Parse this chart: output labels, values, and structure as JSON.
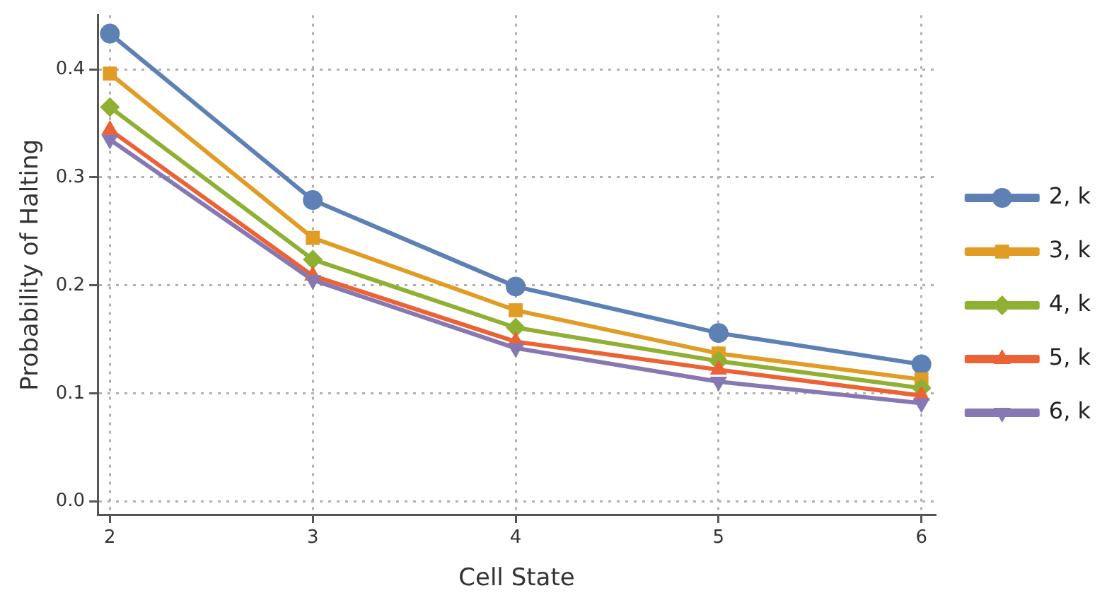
{
  "chart_data": {
    "type": "line",
    "xlabel": "Cell State",
    "ylabel": "Probability of Halting",
    "x": [
      2,
      3,
      4,
      5,
      6
    ],
    "series": [
      {
        "name": "2, k",
        "color": "#5e81b5",
        "marker": "circle",
        "values": [
          0.433,
          0.279,
          0.199,
          0.156,
          0.127
        ]
      },
      {
        "name": "3, k",
        "color": "#e19c24",
        "marker": "square",
        "values": [
          0.396,
          0.244,
          0.177,
          0.137,
          0.113
        ]
      },
      {
        "name": "4, k",
        "color": "#8fb032",
        "marker": "diamond",
        "values": [
          0.365,
          0.224,
          0.161,
          0.13,
          0.105
        ]
      },
      {
        "name": "5, k",
        "color": "#eb6235",
        "marker": "triangle",
        "values": [
          0.344,
          0.209,
          0.148,
          0.122,
          0.098
        ]
      },
      {
        "name": "6, k",
        "color": "#8778b3",
        "marker": "triangle-down",
        "values": [
          0.335,
          0.205,
          0.142,
          0.111,
          0.091
        ]
      }
    ],
    "xlim": [
      1.94,
      6.07
    ],
    "xticks": [
      2,
      3,
      4,
      5,
      6
    ],
    "ylim": [
      -0.012,
      0.45
    ],
    "yticks": [
      {
        "value": 0,
        "label": "0.0"
      },
      {
        "value": 0.1,
        "label": "0.1"
      },
      {
        "value": 0.2,
        "label": "0.2"
      },
      {
        "value": 0.3,
        "label": "0.3"
      },
      {
        "value": 0.4,
        "label": "0.4"
      }
    ],
    "grid": true,
    "legend": "right",
    "line_style": "solid"
  }
}
